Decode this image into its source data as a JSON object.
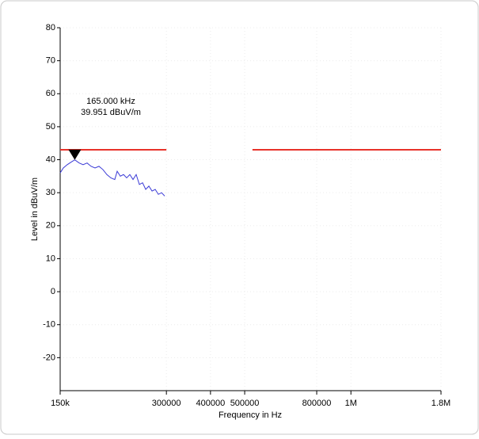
{
  "chart_data": {
    "type": "line",
    "x_label": "Frequency in Hz",
    "y_label": "Level in dBuV/m",
    "log_x": true,
    "grid": true,
    "xlim": [
      150000,
      1800000
    ],
    "xticks": [
      {
        "value": 150000,
        "label": "150k"
      },
      300000,
      400000,
      500000,
      800000,
      {
        "value": 1000000,
        "label": "1M"
      },
      {
        "value": 1800000,
        "label": "1.8M"
      }
    ],
    "ylim": [
      -30,
      80
    ],
    "yticks": [
      -20,
      -10,
      0,
      10,
      20,
      30,
      40,
      50,
      60,
      70,
      80
    ],
    "series": [
      {
        "color": "#e8322a",
        "x": [
          150000,
          300000
        ],
        "values": [
          43,
          43
        ]
      },
      {
        "color": "#e8322a",
        "x": [
          526000,
          1800000
        ],
        "values": [
          43,
          43
        ]
      },
      {
        "color": "#3a3ad6",
        "x": [
          150000,
          153100,
          157100,
          161300,
          165000,
          169800,
          174200,
          178800,
          183500,
          188300,
          193200,
          198300,
          203400,
          208800,
          214200,
          217600,
          222100,
          226800,
          231500,
          236300,
          241300,
          246300,
          251500,
          256800,
          262100,
          267600,
          273200,
          278900,
          284700,
          290700,
          296700
        ],
        "values": [
          36,
          37.5,
          38.5,
          39.3,
          39.951,
          39,
          38.5,
          39,
          38,
          37.5,
          38,
          37,
          35.5,
          34.5,
          34,
          36.5,
          35,
          35.5,
          34.5,
          35.5,
          34,
          35.5,
          32.5,
          33,
          31,
          32,
          30.5,
          31,
          29.5,
          30,
          29
        ]
      }
    ],
    "marker": {
      "x": 165000,
      "y": 39.951,
      "labels": [
        "165.000 kHz",
        "39.951 dBuV/m"
      ]
    }
  }
}
